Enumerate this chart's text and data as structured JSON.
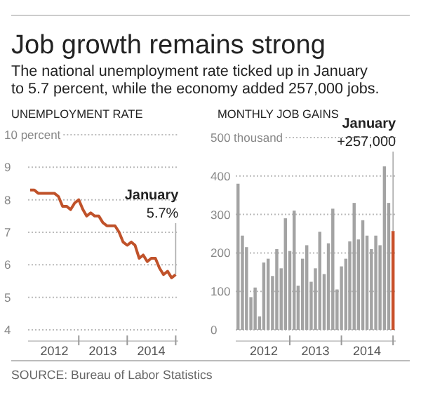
{
  "chart_data": [
    {
      "type": "line",
      "title": "Job growth remains strong",
      "subtitle": "The national unemployment rate ticked up in January\nto 5.7 percent, while the economy added 257,000 jobs.",
      "ylabel": "UNEMPLOYMENT RATE",
      "x": [
        "2012-01",
        "2012-02",
        "2012-03",
        "2012-04",
        "2012-05",
        "2012-06",
        "2012-07",
        "2012-08",
        "2012-09",
        "2012-10",
        "2012-11",
        "2012-12",
        "2013-01",
        "2013-02",
        "2013-03",
        "2013-04",
        "2013-05",
        "2013-06",
        "2013-07",
        "2013-08",
        "2013-09",
        "2013-10",
        "2013-11",
        "2013-12",
        "2014-01",
        "2014-02",
        "2014-03",
        "2014-04",
        "2014-05",
        "2014-06",
        "2014-07",
        "2014-08",
        "2014-09",
        "2014-10",
        "2014-11",
        "2014-12",
        "2015-01"
      ],
      "values": [
        8.3,
        8.3,
        8.2,
        8.2,
        8.2,
        8.2,
        8.2,
        8.1,
        7.8,
        7.8,
        7.7,
        7.9,
        8.0,
        7.7,
        7.5,
        7.6,
        7.5,
        7.5,
        7.3,
        7.2,
        7.2,
        7.2,
        7.0,
        6.7,
        6.6,
        6.7,
        6.6,
        6.2,
        6.3,
        6.1,
        6.2,
        6.2,
        5.9,
        5.7,
        5.8,
        5.6,
        5.7
      ],
      "color": "#c0522a",
      "ylim": [
        4,
        10
      ],
      "yticks": [
        4,
        5,
        6,
        7,
        8,
        9,
        {
          "value": 10,
          "label": "10 percent"
        }
      ],
      "xlim": [
        "2011-12-16",
        "2015-01-20"
      ],
      "xticks": [
        {
          "value": "2012-07-01",
          "label": "2012"
        },
        {
          "value": "2013-01-01",
          "label": null
        },
        {
          "value": "2013-07-01",
          "label": "2013"
        },
        {
          "value": "2014-01-01",
          "label": null
        },
        {
          "value": "2014-07-01",
          "label": "2014"
        },
        {
          "value": "2015-01-01",
          "label": null
        }
      ],
      "grid": "y",
      "annotations": [
        {
          "text": "January\n5.7%",
          "x": "2015-01",
          "y": 5.7
        },
        "SOURCE: Bureau of Labor Statistics"
      ]
    },
    {
      "type": "bar",
      "ylabel": "MONTHLY JOB GAINS",
      "x": [
        "2012-01",
        "2012-02",
        "2012-03",
        "2012-04",
        "2012-05",
        "2012-06",
        "2012-07",
        "2012-08",
        "2012-09",
        "2012-10",
        "2012-11",
        "2012-12",
        "2013-01",
        "2013-02",
        "2013-03",
        "2013-04",
        "2013-05",
        "2013-06",
        "2013-07",
        "2013-08",
        "2013-09",
        "2013-10",
        "2013-11",
        "2013-12",
        "2014-01",
        "2014-02",
        "2014-03",
        "2014-04",
        "2014-05",
        "2014-06",
        "2014-07",
        "2014-08",
        "2014-09",
        "2014-10",
        "2014-11",
        "2014-12",
        "2015-01"
      ],
      "values": [
        380,
        245,
        215,
        85,
        110,
        35,
        175,
        185,
        140,
        210,
        160,
        290,
        205,
        310,
        115,
        185,
        220,
        125,
        160,
        255,
        145,
        225,
        315,
        105,
        165,
        185,
        230,
        330,
        235,
        285,
        245,
        210,
        245,
        220,
        425,
        330,
        257
      ],
      "colors": [
        "#a3a3a3",
        "#a3a3a3",
        "#a3a3a3",
        "#a3a3a3",
        "#a3a3a3",
        "#a3a3a3",
        "#a3a3a3",
        "#a3a3a3",
        "#a3a3a3",
        "#a3a3a3",
        "#a3a3a3",
        "#a3a3a3",
        "#a3a3a3",
        "#a3a3a3",
        "#a3a3a3",
        "#a3a3a3",
        "#a3a3a3",
        "#a3a3a3",
        "#a3a3a3",
        "#a3a3a3",
        "#a3a3a3",
        "#a3a3a3",
        "#a3a3a3",
        "#a3a3a3",
        "#a3a3a3",
        "#a3a3a3",
        "#a3a3a3",
        "#a3a3a3",
        "#a3a3a3",
        "#a3a3a3",
        "#a3a3a3",
        "#a3a3a3",
        "#a3a3a3",
        "#a3a3a3",
        "#a3a3a3",
        "#a3a3a3",
        "#c8502a"
      ],
      "ylim": [
        0,
        500
      ],
      "yticks": [
        0,
        100,
        200,
        300,
        400,
        {
          "value": 500,
          "label": "500 thousand"
        }
      ],
      "xlim": [
        "2011-12-16",
        "2015-01-20"
      ],
      "xticks": [
        {
          "value": "2012-07-01",
          "label": "2012"
        },
        {
          "value": "2013-01-01",
          "label": null
        },
        {
          "value": "2013-07-01",
          "label": "2013"
        },
        {
          "value": "2014-01-01",
          "label": null
        },
        {
          "value": "2014-07-01",
          "label": "2014"
        },
        {
          "value": "2015-01-01",
          "label": null
        }
      ],
      "grid": "y",
      "annotations": [
        {
          "text": "January\n+257,000",
          "x": "2015-01",
          "y": 257
        }
      ]
    }
  ]
}
